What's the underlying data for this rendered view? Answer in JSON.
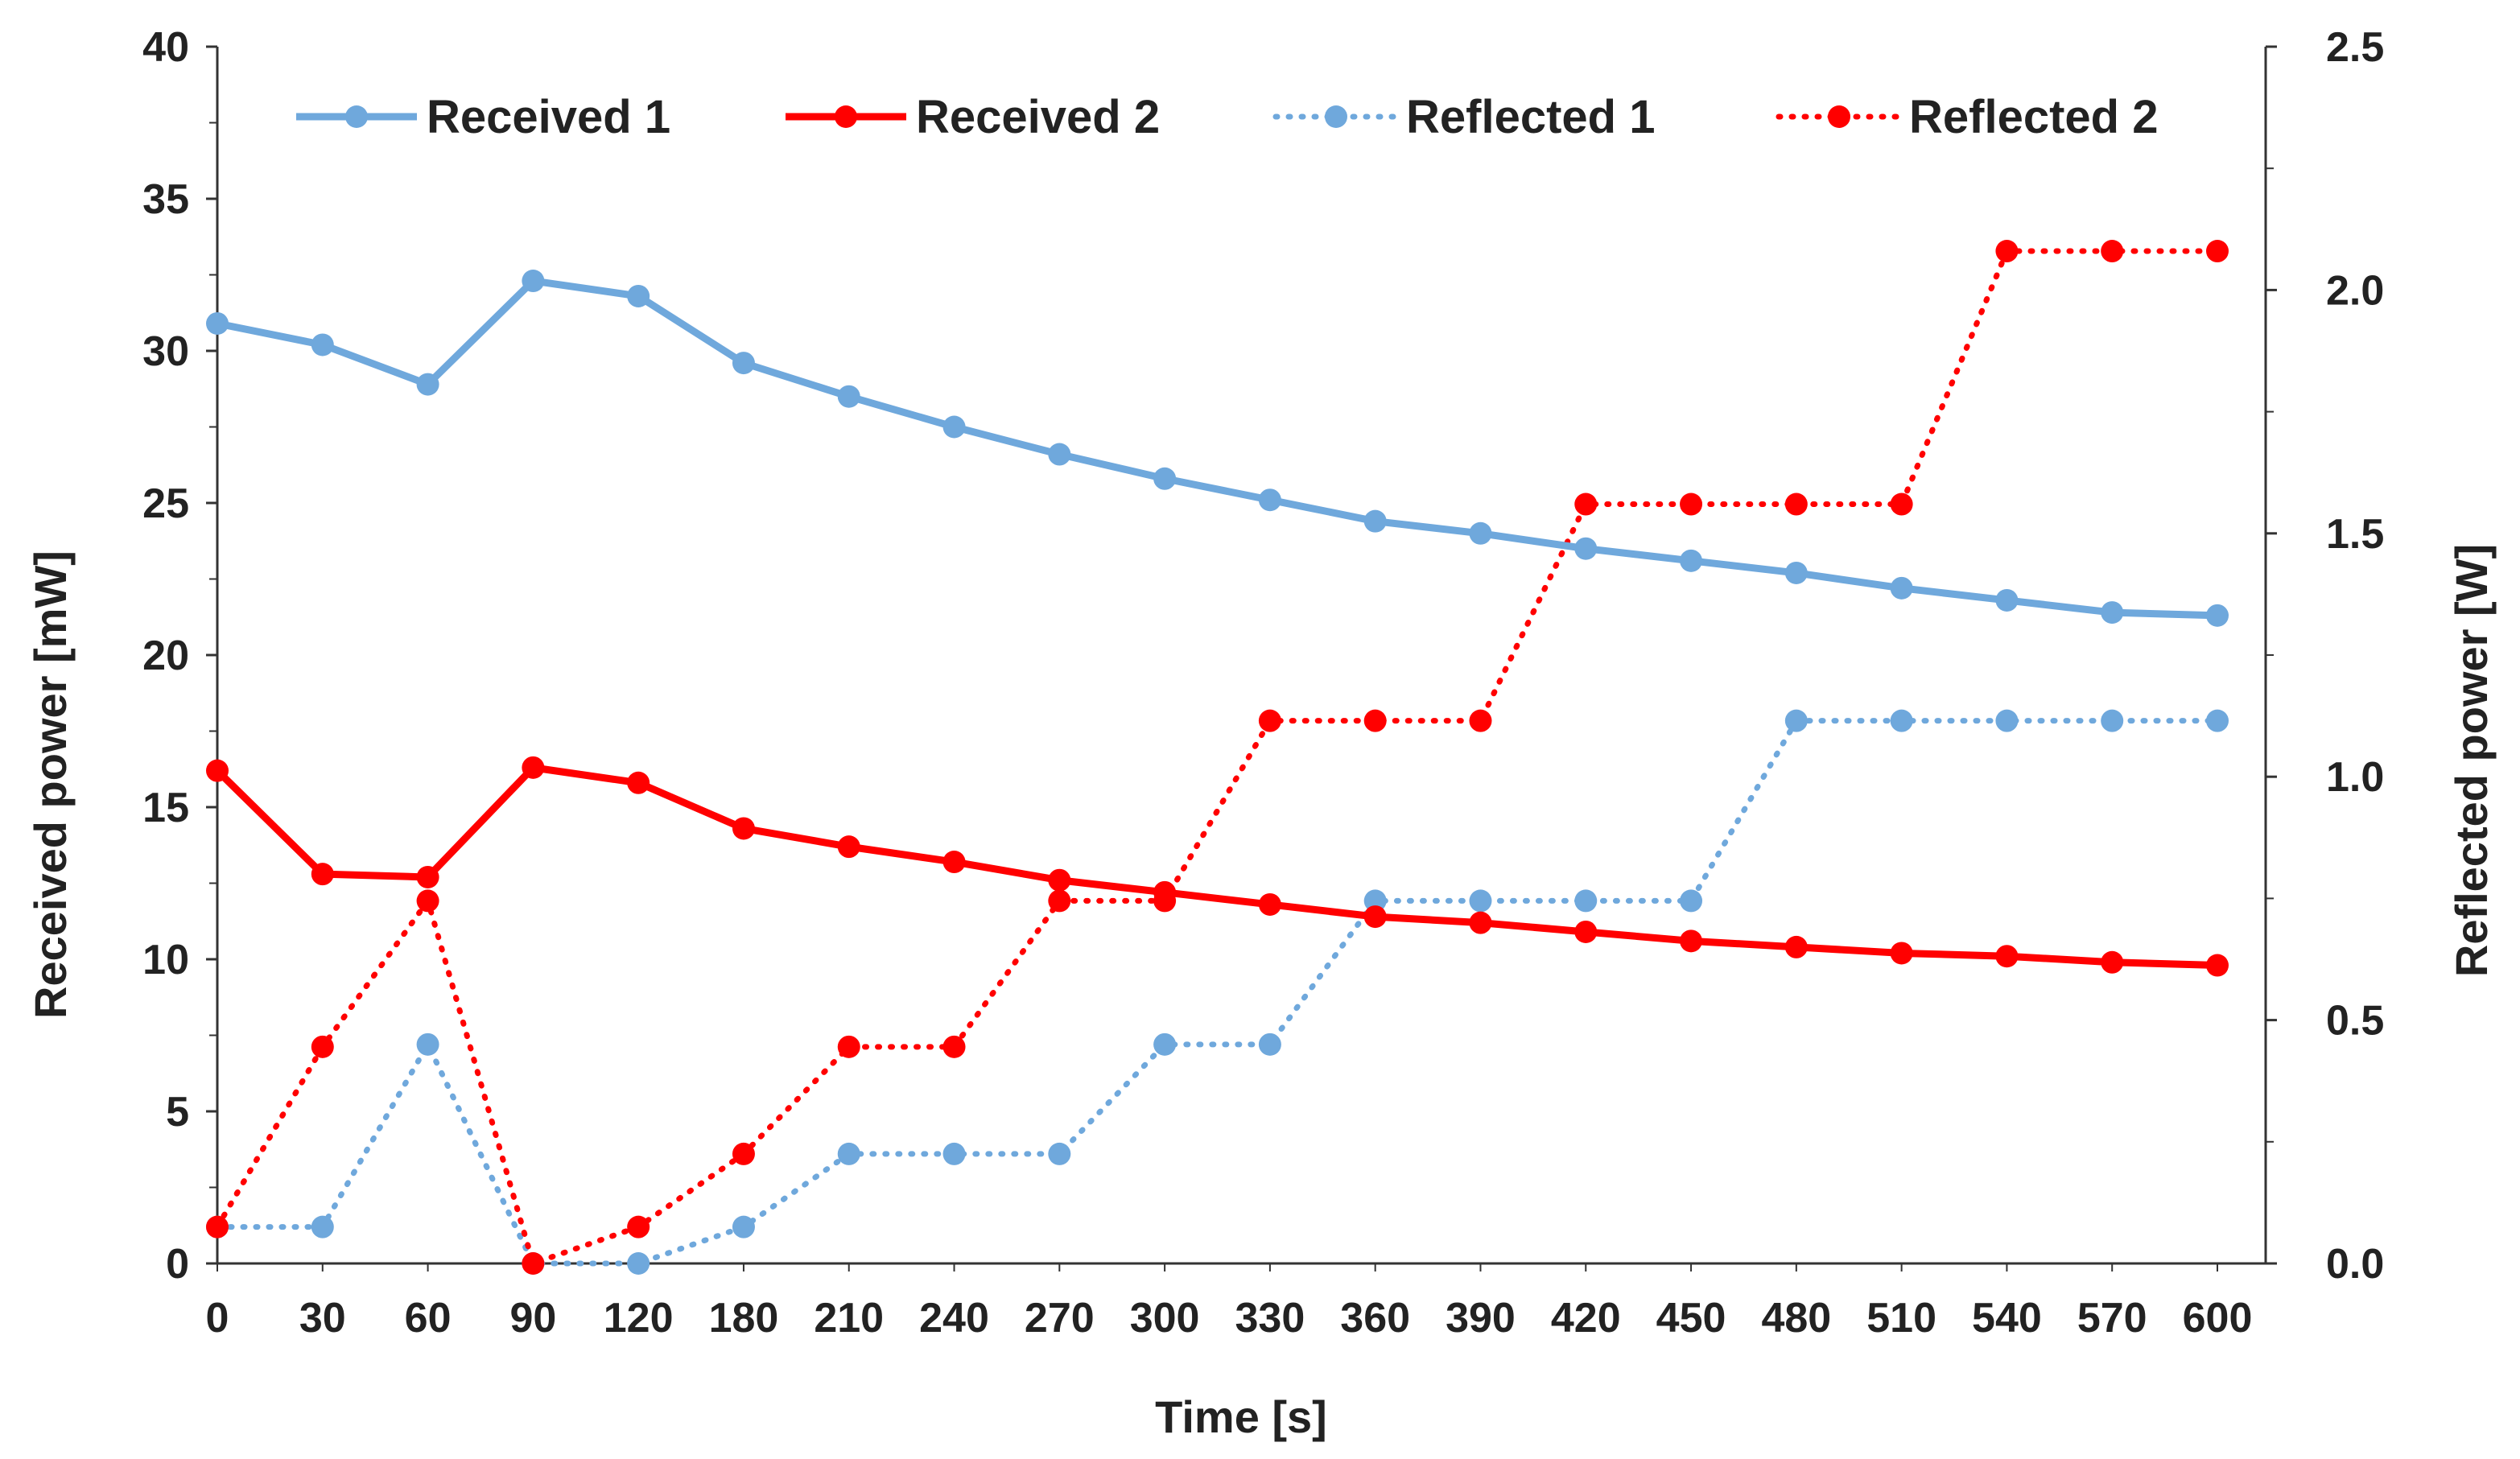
{
  "chart_data": {
    "type": "line",
    "title": "",
    "xlabel": "Time [s]",
    "ylabel": "Received power [mW]",
    "y2label": "Reflected power [W]",
    "categories": [
      "0",
      "30",
      "60",
      "90",
      "120",
      "180",
      "210",
      "240",
      "270",
      "300",
      "330",
      "360",
      "390",
      "420",
      "450",
      "480",
      "510",
      "540",
      "570",
      "600"
    ],
    "ylim": [
      0,
      40
    ],
    "yticks": [
      "0",
      "5",
      "10",
      "15",
      "20",
      "25",
      "30",
      "35",
      "40"
    ],
    "y2lim": [
      0,
      2.5
    ],
    "y2ticks": [
      "0.0",
      "0.5",
      "1.0",
      "1.5",
      "2.0",
      "2.5"
    ],
    "legend_position": "top",
    "series": [
      {
        "name": "Received 1",
        "axis": "left",
        "style": "solid",
        "color": "#6fa8dc",
        "values": [
          30.9,
          30.2,
          28.9,
          32.3,
          31.8,
          29.6,
          28.5,
          27.5,
          26.6,
          25.8,
          25.1,
          24.4,
          24.0,
          23.5,
          23.1,
          22.7,
          22.2,
          21.8,
          21.4,
          21.3
        ]
      },
      {
        "name": "Received 2",
        "axis": "left",
        "style": "solid",
        "color": "#ff0000",
        "values": [
          16.2,
          12.8,
          12.7,
          16.3,
          15.8,
          14.3,
          13.7,
          13.2,
          12.6,
          12.2,
          11.8,
          11.4,
          11.2,
          10.9,
          10.6,
          10.4,
          10.2,
          10.1,
          9.9,
          9.8
        ]
      },
      {
        "name": "Reflected 1",
        "axis": "right",
        "style": "dotted",
        "color": "#6fa8dc",
        "values": [
          0.075,
          0.075,
          0.45,
          0.0,
          0.0,
          0.075,
          0.225,
          0.225,
          0.225,
          0.45,
          0.45,
          0.745,
          0.745,
          0.745,
          0.745,
          1.115,
          1.115,
          1.115,
          1.115,
          1.115
        ]
      },
      {
        "name": "Reflected 2",
        "axis": "right",
        "style": "dotted",
        "color": "#ff0000",
        "values": [
          0.075,
          0.445,
          0.745,
          0.0,
          0.075,
          0.225,
          0.445,
          0.445,
          0.745,
          0.745,
          1.115,
          1.115,
          1.115,
          1.56,
          1.56,
          1.56,
          1.56,
          2.08,
          2.08,
          2.08
        ]
      }
    ]
  }
}
